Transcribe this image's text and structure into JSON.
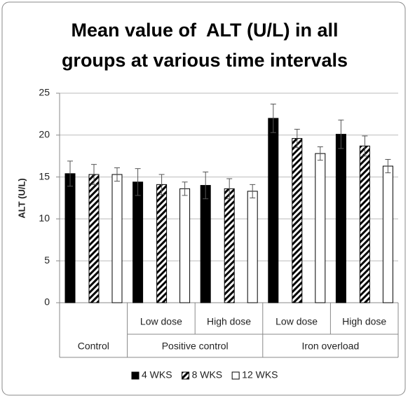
{
  "chart_data": {
    "type": "bar",
    "title": [
      "Mean value of  ALT (U/L) in all",
      "groups at various time intervals"
    ],
    "ylabel": "ALT (U/L)",
    "groups": [
      {
        "name": "Control",
        "categories": [
          null
        ]
      },
      {
        "name": "Positive control",
        "categories": [
          "Low dose",
          "High dose"
        ]
      },
      {
        "name": "Iron overload",
        "categories": [
          "Low dose",
          "High dose"
        ]
      }
    ],
    "series": [
      {
        "name": "4 WKS",
        "color": "#000000",
        "pattern": "solid",
        "values": [
          15.4,
          14.4,
          14.0,
          22.0,
          20.1
        ],
        "errors": [
          1.5,
          1.6,
          1.6,
          1.7,
          1.7
        ]
      },
      {
        "name": "8 WKS",
        "color": "#000000",
        "pattern": "hatch",
        "values": [
          15.3,
          14.1,
          13.6,
          19.6,
          18.7
        ],
        "errors": [
          1.2,
          1.2,
          1.2,
          1.1,
          1.2
        ]
      },
      {
        "name": "12 WKS",
        "color": "#ffffff",
        "pattern": "solid",
        "values": [
          15.3,
          13.6,
          13.3,
          17.8,
          16.3
        ],
        "errors": [
          0.8,
          0.8,
          0.8,
          0.8,
          0.8
        ]
      }
    ],
    "ylim": [
      0,
      25
    ],
    "yticks": [
      0,
      5,
      10,
      15,
      20,
      25
    ],
    "grid": true,
    "legend": "bottom"
  }
}
